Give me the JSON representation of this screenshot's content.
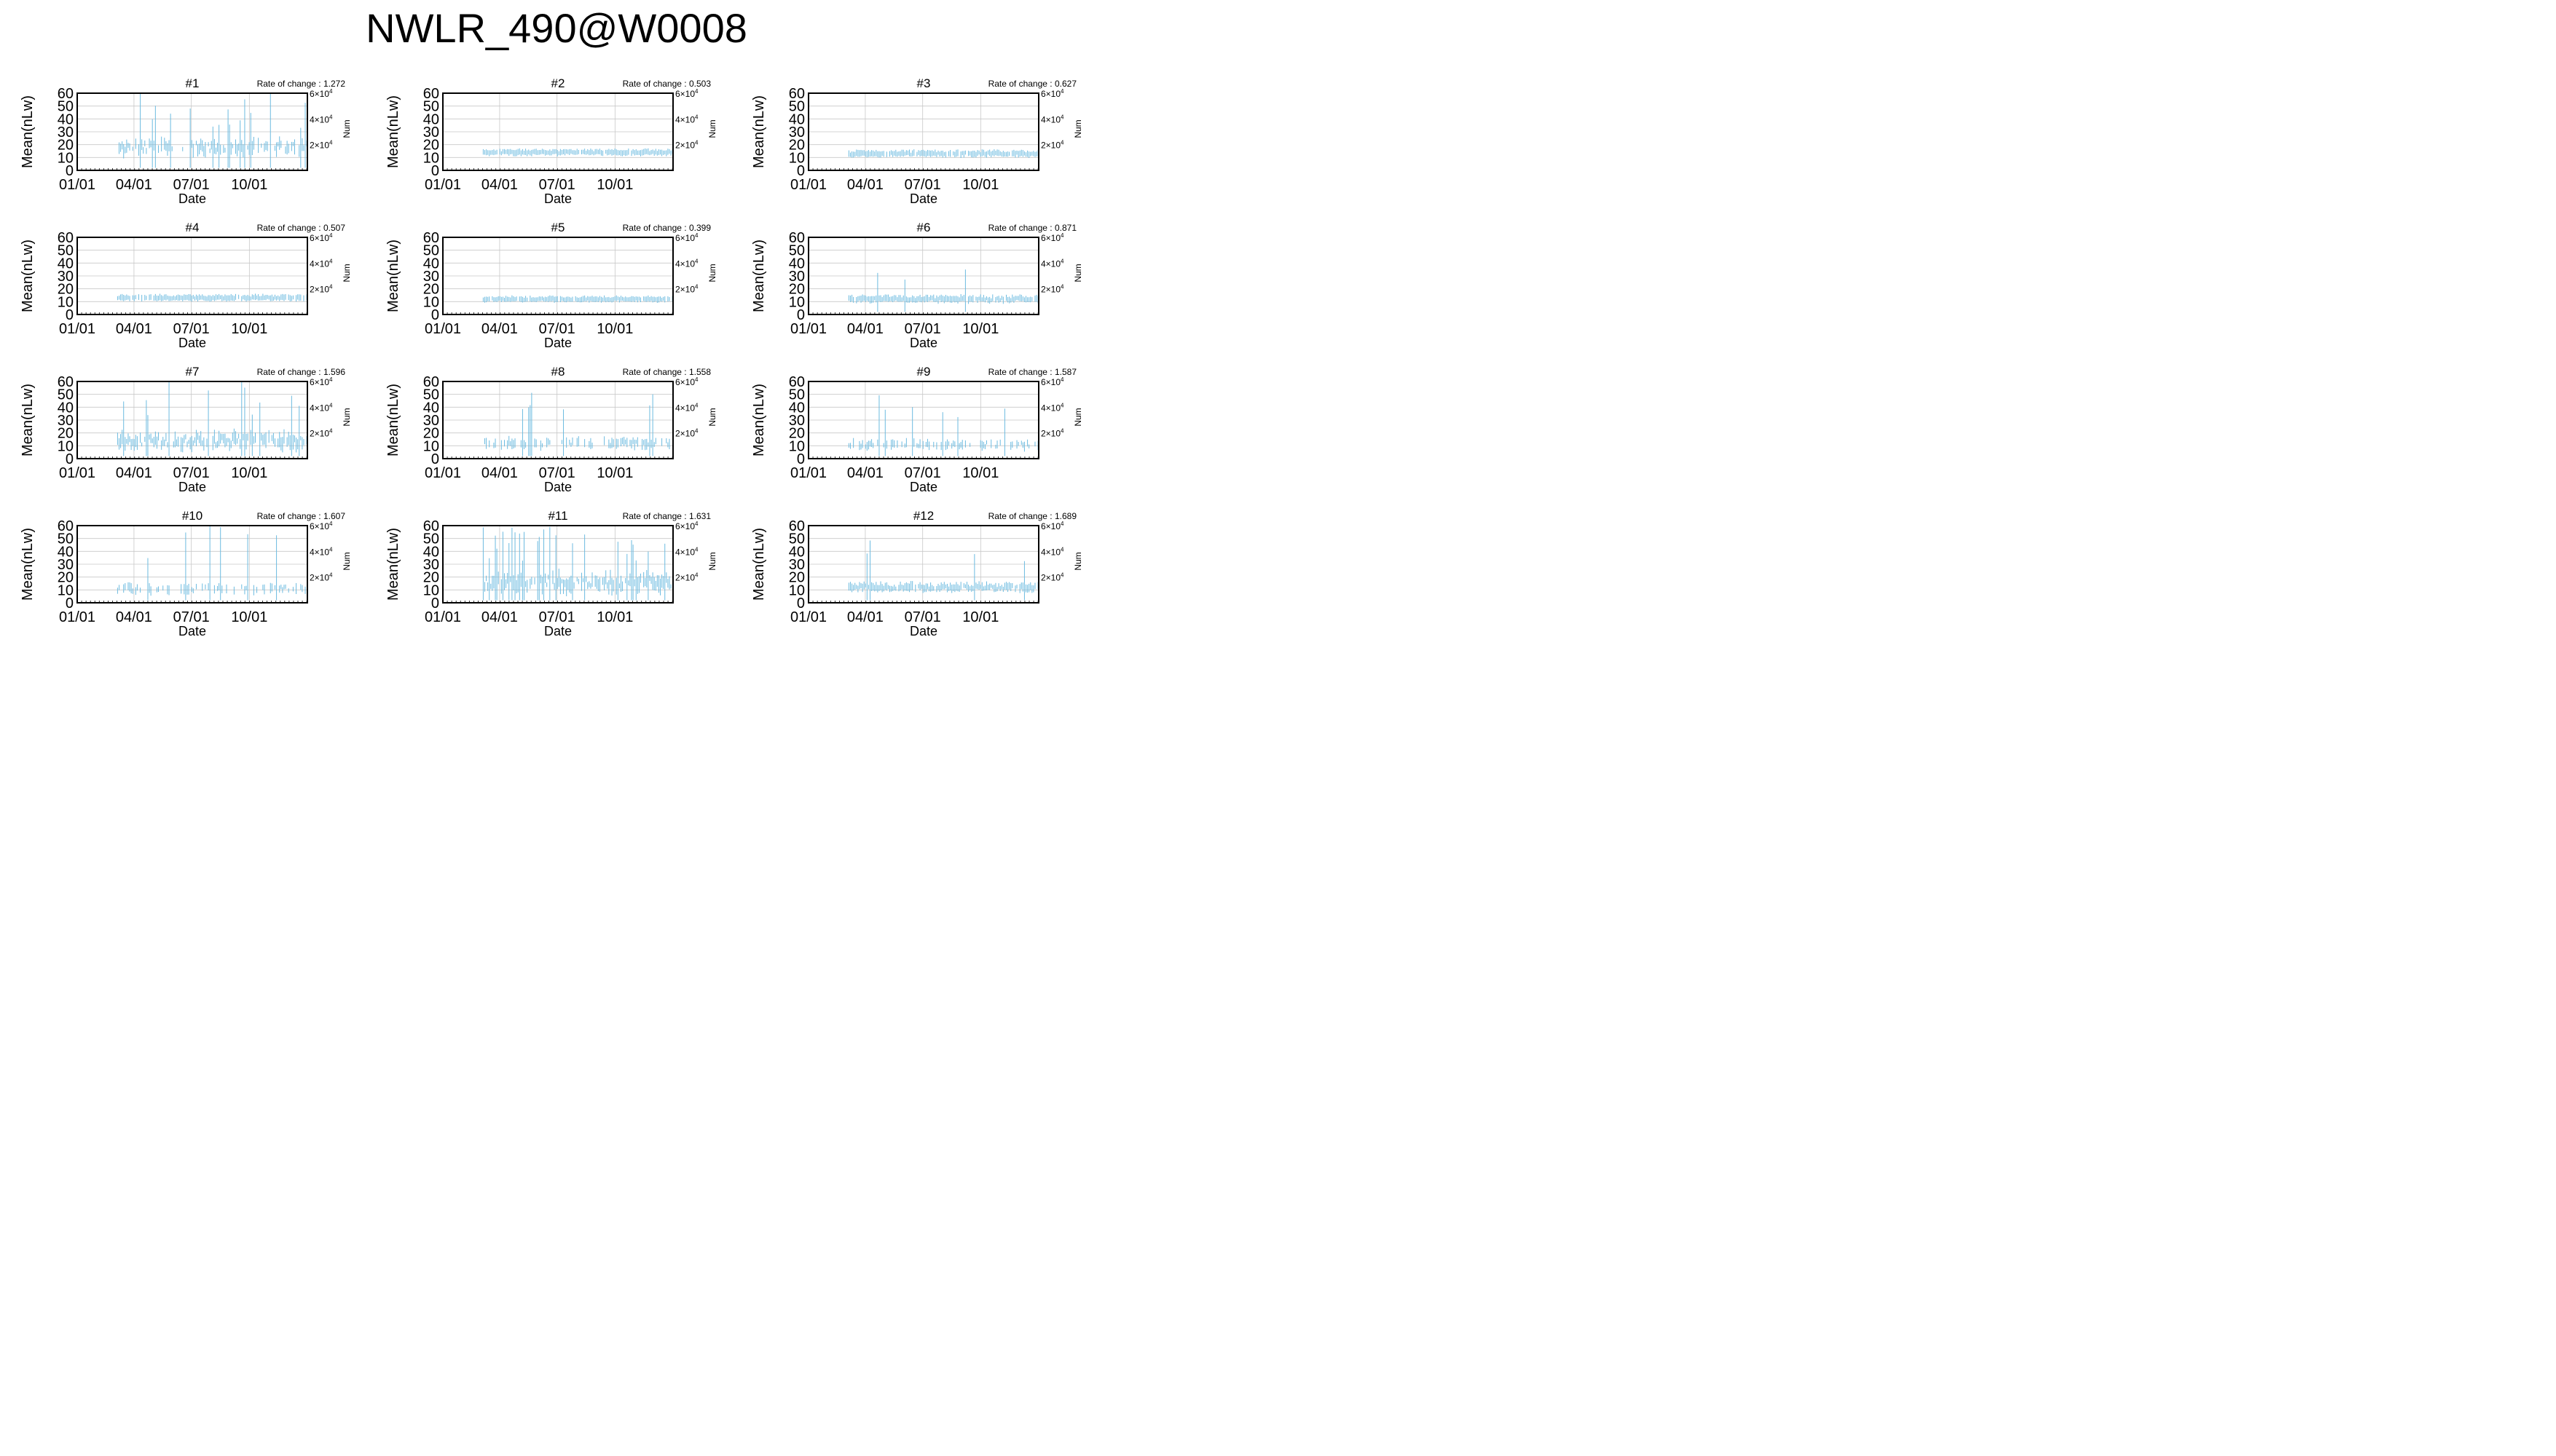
{
  "figure": {
    "title": "NWLR_490@W0008",
    "colors": {
      "errorbar": "#6cbbe0",
      "grid": "#c8c8c8",
      "axis": "#000000"
    }
  },
  "chart_data": {
    "type": "errorbar-grid",
    "x_label": "Date",
    "y_label": "Mean(nLw)",
    "y2_label": "Num",
    "x_ticks": [
      "01/01",
      "04/01",
      "07/01",
      "10/01"
    ],
    "x_tick_days": [
      0,
      90,
      181,
      273
    ],
    "x_range_days": [
      0,
      365
    ],
    "y_ticks": [
      "0",
      "10",
      "20",
      "30",
      "40",
      "50",
      "60"
    ],
    "y_range": [
      0,
      60
    ],
    "y2_ticks": [
      {
        "mant": "2×10",
        "exp": "4"
      },
      {
        "mant": "4×10",
        "exp": "4"
      },
      {
        "mant": "6×10",
        "exp": "4"
      }
    ],
    "y2_tick_values": [
      20000,
      40000,
      60000
    ],
    "rate_prefix": "Rate of change : ",
    "grid": true,
    "panels": [
      {
        "title": "#1",
        "rate": "1.272",
        "start_day": 64,
        "end_day": 365,
        "mean": 18,
        "spread": 13,
        "gap": 0.25,
        "big_frac": 0.12,
        "big_max": 60
      },
      {
        "title": "#2",
        "rate": "0.503",
        "start_day": 64,
        "end_day": 365,
        "mean": 14,
        "spread": 3,
        "gap": 0.05,
        "big_frac": 0.0,
        "big_max": 24
      },
      {
        "title": "#3",
        "rate": "0.627",
        "start_day": 64,
        "end_day": 365,
        "mean": 13,
        "spread": 3.5,
        "gap": 0.08,
        "big_frac": 0.0,
        "big_max": 23
      },
      {
        "title": "#4",
        "rate": "0.507",
        "start_day": 64,
        "end_day": 365,
        "mean": 13,
        "spread": 3,
        "gap": 0.06,
        "big_frac": 0.0,
        "big_max": 24
      },
      {
        "title": "#5",
        "rate": "0.399",
        "start_day": 64,
        "end_day": 365,
        "mean": 12,
        "spread": 2.5,
        "gap": 0.06,
        "big_frac": 0.0,
        "big_max": 20
      },
      {
        "title": "#6",
        "rate": "0.871",
        "start_day": 64,
        "end_day": 365,
        "mean": 12,
        "spread": 4,
        "gap": 0.06,
        "big_frac": 0.02,
        "big_max": 41
      },
      {
        "title": "#7",
        "rate": "1.596",
        "start_day": 64,
        "end_day": 365,
        "mean": 14,
        "spread": 14,
        "gap": 0.15,
        "big_frac": 0.15,
        "big_max": 60
      },
      {
        "title": "#8",
        "rate": "1.558",
        "start_day": 64,
        "end_day": 365,
        "mean": 12,
        "spread": 8,
        "gap": 0.45,
        "big_frac": 0.1,
        "big_max": 60
      },
      {
        "title": "#9",
        "rate": "1.587",
        "start_day": 64,
        "end_day": 365,
        "mean": 11,
        "spread": 7,
        "gap": 0.5,
        "big_frac": 0.08,
        "big_max": 55
      },
      {
        "title": "#10",
        "rate": "1.607",
        "start_day": 64,
        "end_day": 365,
        "mean": 11,
        "spread": 8,
        "gap": 0.55,
        "big_frac": 0.1,
        "big_max": 60
      },
      {
        "title": "#11",
        "rate": "1.631",
        "start_day": 64,
        "end_day": 365,
        "mean": 16,
        "spread": 16,
        "gap": 0.1,
        "big_frac": 0.22,
        "big_max": 60
      },
      {
        "title": "#12",
        "rate": "1.689",
        "start_day": 64,
        "end_day": 365,
        "mean": 12,
        "spread": 6,
        "gap": 0.08,
        "big_frac": 0.04,
        "big_max": 60
      }
    ]
  }
}
